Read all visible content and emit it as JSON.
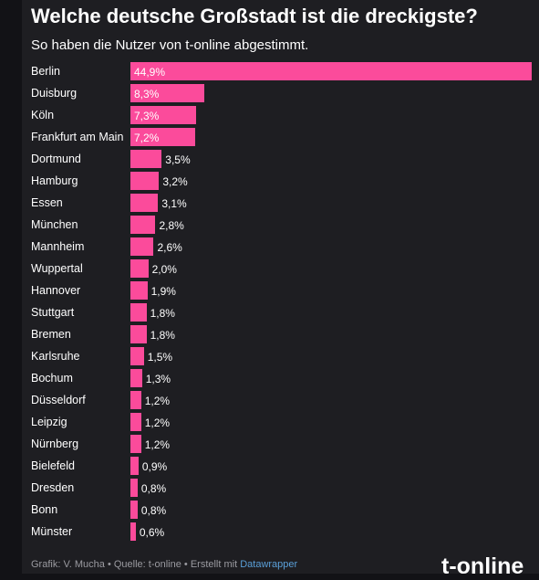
{
  "chart_data": {
    "type": "bar",
    "title": "Welche deutsche Großstadt ist die dreckigste?",
    "subtitle": "So haben die Nutzer von t-online abgestimmt.",
    "categories": [
      "Berlin",
      "Duisburg",
      "Köln",
      "Frankfurt am Main",
      "Dortmund",
      "Hamburg",
      "Essen",
      "München",
      "Mannheim",
      "Wuppertal",
      "Hannover",
      "Stuttgart",
      "Bremen",
      "Karlsruhe",
      "Bochum",
      "Düsseldorf",
      "Leipzig",
      "Nürnberg",
      "Bielefeld",
      "Dresden",
      "Bonn",
      "Münster"
    ],
    "values": [
      44.9,
      8.3,
      7.3,
      7.2,
      3.5,
      3.2,
      3.1,
      2.8,
      2.6,
      2.0,
      1.9,
      1.8,
      1.8,
      1.5,
      1.3,
      1.2,
      1.2,
      1.2,
      0.9,
      0.8,
      0.8,
      0.6
    ],
    "labels": [
      "44,9%",
      "8,3%",
      "7,3%",
      "7,2%",
      "3,5%",
      "3,2%",
      "3,1%",
      "2,8%",
      "2,6%",
      "2,0%",
      "1,9%",
      "1,8%",
      "1,8%",
      "1,5%",
      "1,3%",
      "1,2%",
      "1,2%",
      "1,2%",
      "0,9%",
      "0,8%",
      "0,8%",
      "0,6%"
    ],
    "xlim": [
      0,
      44.9
    ],
    "bar_color": "#fb4b9b",
    "orientation": "horizontal"
  },
  "footer": {
    "text": "Grafik: V. Mucha • Quelle: t-online • Erstellt mit ",
    "link": "Datawrapper"
  },
  "brand": "t-online"
}
